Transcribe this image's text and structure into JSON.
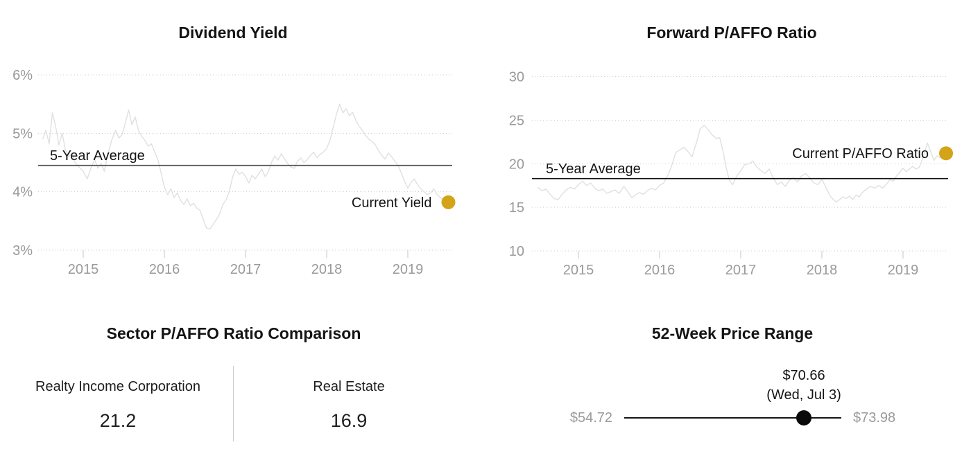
{
  "colors": {
    "accent_gold": "#d3a418",
    "series_gray": "#e0e0e0",
    "grid_gray": "#cccccc",
    "axis_text_gray": "#9a9a9a",
    "annotation_black": "#141414",
    "avg_line_chart1": "#4d4d4d",
    "avg_line_chart2": "#111111"
  },
  "chart_data": [
    {
      "type": "line",
      "title": "Dividend Yield",
      "xlabel": "",
      "ylabel": "",
      "ylim": [
        3,
        6
      ],
      "xlim": [
        2014.44,
        2019.57
      ],
      "grid": "dotted-horizontal",
      "y_ticks": [
        {
          "v": 6,
          "label": "6%"
        },
        {
          "v": 5,
          "label": "5%"
        },
        {
          "v": 4,
          "label": "4%"
        },
        {
          "v": 3,
          "label": "3%"
        }
      ],
      "x_ticks": [
        {
          "v": 2015,
          "label": "2015"
        },
        {
          "v": 2016,
          "label": "2016"
        },
        {
          "v": 2017,
          "label": "2017"
        },
        {
          "v": 2018,
          "label": "2018"
        },
        {
          "v": 2019,
          "label": "2019"
        }
      ],
      "average_line": {
        "value": 4.45,
        "label": "5-Year Average"
      },
      "current_marker": {
        "x": 2019.5,
        "value": 3.82,
        "label": "Current Yield"
      },
      "series": [
        {
          "name": "Dividend Yield",
          "points": [
            [
              2014.5,
              4.9
            ],
            [
              2014.54,
              5.05
            ],
            [
              2014.58,
              4.82
            ],
            [
              2014.62,
              5.35
            ],
            [
              2014.66,
              5.12
            ],
            [
              2014.7,
              4.8
            ],
            [
              2014.74,
              5.0
            ],
            [
              2014.78,
              4.72
            ],
            [
              2014.82,
              4.6
            ],
            [
              2014.86,
              4.65
            ],
            [
              2014.9,
              4.5
            ],
            [
              2014.95,
              4.42
            ],
            [
              2015.0,
              4.35
            ],
            [
              2015.05,
              4.22
            ],
            [
              2015.1,
              4.42
            ],
            [
              2015.14,
              4.55
            ],
            [
              2015.18,
              4.4
            ],
            [
              2015.22,
              4.48
            ],
            [
              2015.26,
              4.35
            ],
            [
              2015.3,
              4.62
            ],
            [
              2015.35,
              4.88
            ],
            [
              2015.4,
              5.05
            ],
            [
              2015.44,
              4.92
            ],
            [
              2015.48,
              4.98
            ],
            [
              2015.52,
              5.18
            ],
            [
              2015.56,
              5.4
            ],
            [
              2015.6,
              5.15
            ],
            [
              2015.64,
              5.28
            ],
            [
              2015.68,
              5.05
            ],
            [
              2015.72,
              4.95
            ],
            [
              2015.76,
              4.88
            ],
            [
              2015.8,
              4.78
            ],
            [
              2015.84,
              4.82
            ],
            [
              2015.88,
              4.68
            ],
            [
              2015.92,
              4.55
            ],
            [
              2015.96,
              4.32
            ],
            [
              2016.0,
              4.08
            ],
            [
              2016.04,
              3.95
            ],
            [
              2016.08,
              4.05
            ],
            [
              2016.12,
              3.9
            ],
            [
              2016.16,
              3.98
            ],
            [
              2016.2,
              3.85
            ],
            [
              2016.24,
              3.78
            ],
            [
              2016.28,
              3.88
            ],
            [
              2016.32,
              3.76
            ],
            [
              2016.36,
              3.8
            ],
            [
              2016.4,
              3.72
            ],
            [
              2016.44,
              3.68
            ],
            [
              2016.48,
              3.52
            ],
            [
              2016.52,
              3.38
            ],
            [
              2016.56,
              3.36
            ],
            [
              2016.6,
              3.44
            ],
            [
              2016.64,
              3.52
            ],
            [
              2016.68,
              3.62
            ],
            [
              2016.72,
              3.78
            ],
            [
              2016.76,
              3.86
            ],
            [
              2016.8,
              4.0
            ],
            [
              2016.84,
              4.25
            ],
            [
              2016.88,
              4.39
            ],
            [
              2016.92,
              4.3
            ],
            [
              2016.96,
              4.33
            ],
            [
              2017.0,
              4.26
            ],
            [
              2017.04,
              4.15
            ],
            [
              2017.08,
              4.28
            ],
            [
              2017.12,
              4.22
            ],
            [
              2017.16,
              4.3
            ],
            [
              2017.2,
              4.39
            ],
            [
              2017.24,
              4.26
            ],
            [
              2017.28,
              4.34
            ],
            [
              2017.32,
              4.5
            ],
            [
              2017.36,
              4.61
            ],
            [
              2017.4,
              4.54
            ],
            [
              2017.44,
              4.65
            ],
            [
              2017.48,
              4.56
            ],
            [
              2017.52,
              4.48
            ],
            [
              2017.56,
              4.42
            ],
            [
              2017.6,
              4.4
            ],
            [
              2017.64,
              4.52
            ],
            [
              2017.68,
              4.58
            ],
            [
              2017.72,
              4.5
            ],
            [
              2017.76,
              4.55
            ],
            [
              2017.8,
              4.62
            ],
            [
              2017.84,
              4.68
            ],
            [
              2017.88,
              4.58
            ],
            [
              2017.92,
              4.64
            ],
            [
              2017.96,
              4.68
            ],
            [
              2018.0,
              4.74
            ],
            [
              2018.04,
              4.88
            ],
            [
              2018.08,
              5.1
            ],
            [
              2018.12,
              5.32
            ],
            [
              2018.16,
              5.5
            ],
            [
              2018.2,
              5.35
            ],
            [
              2018.24,
              5.42
            ],
            [
              2018.28,
              5.3
            ],
            [
              2018.32,
              5.36
            ],
            [
              2018.36,
              5.22
            ],
            [
              2018.4,
              5.12
            ],
            [
              2018.44,
              5.05
            ],
            [
              2018.48,
              4.96
            ],
            [
              2018.52,
              4.9
            ],
            [
              2018.56,
              4.86
            ],
            [
              2018.6,
              4.8
            ],
            [
              2018.64,
              4.7
            ],
            [
              2018.68,
              4.62
            ],
            [
              2018.72,
              4.56
            ],
            [
              2018.76,
              4.66
            ],
            [
              2018.8,
              4.6
            ],
            [
              2018.84,
              4.52
            ],
            [
              2018.88,
              4.45
            ],
            [
              2018.92,
              4.32
            ],
            [
              2018.96,
              4.18
            ],
            [
              2019.0,
              4.06
            ],
            [
              2019.04,
              4.16
            ],
            [
              2019.08,
              4.22
            ],
            [
              2019.12,
              4.12
            ],
            [
              2019.16,
              4.05
            ],
            [
              2019.2,
              4.0
            ],
            [
              2019.24,
              3.95
            ],
            [
              2019.28,
              3.98
            ],
            [
              2019.32,
              4.05
            ],
            [
              2019.36,
              3.95
            ],
            [
              2019.4,
              3.9
            ],
            [
              2019.44,
              3.86
            ]
          ]
        }
      ]
    },
    {
      "type": "line",
      "title": "Forward P/AFFO Ratio",
      "xlabel": "",
      "ylabel": "",
      "ylim": [
        10,
        30
      ],
      "xlim": [
        2014.43,
        2019.56
      ],
      "grid": "dotted-horizontal",
      "y_ticks": [
        {
          "v": 30,
          "label": "30"
        },
        {
          "v": 25,
          "label": "25"
        },
        {
          "v": 20,
          "label": "20"
        },
        {
          "v": 15,
          "label": "15"
        },
        {
          "v": 10,
          "label": "10"
        }
      ],
      "x_ticks": [
        {
          "v": 2015,
          "label": "2015"
        },
        {
          "v": 2016,
          "label": "2016"
        },
        {
          "v": 2017,
          "label": "2017"
        },
        {
          "v": 2018,
          "label": "2018"
        },
        {
          "v": 2019,
          "label": "2019"
        }
      ],
      "average_line": {
        "value": 18.3,
        "label": "5-Year Average"
      },
      "current_marker": {
        "x": 2019.53,
        "value": 21.2,
        "label": "Current P/AFFO Ratio"
      },
      "series": [
        {
          "name": "Forward P/AFFO Ratio",
          "points": [
            [
              2014.5,
              17.3
            ],
            [
              2014.55,
              16.9
            ],
            [
              2014.6,
              17.1
            ],
            [
              2014.65,
              16.5
            ],
            [
              2014.7,
              16.0
            ],
            [
              2014.75,
              15.9
            ],
            [
              2014.8,
              16.5
            ],
            [
              2014.85,
              17.0
            ],
            [
              2014.9,
              17.3
            ],
            [
              2014.95,
              17.1
            ],
            [
              2015.0,
              17.6
            ],
            [
              2015.05,
              18.0
            ],
            [
              2015.1,
              17.5
            ],
            [
              2015.15,
              17.8
            ],
            [
              2015.2,
              17.2
            ],
            [
              2015.25,
              16.9
            ],
            [
              2015.3,
              17.1
            ],
            [
              2015.35,
              16.6
            ],
            [
              2015.4,
              16.8
            ],
            [
              2015.45,
              17.0
            ],
            [
              2015.5,
              16.6
            ],
            [
              2015.56,
              17.4
            ],
            [
              2015.6,
              16.9
            ],
            [
              2015.66,
              16.1
            ],
            [
              2015.7,
              16.4
            ],
            [
              2015.75,
              16.7
            ],
            [
              2015.8,
              16.5
            ],
            [
              2015.85,
              16.9
            ],
            [
              2015.9,
              17.2
            ],
            [
              2015.95,
              17.0
            ],
            [
              2016.0,
              17.5
            ],
            [
              2016.05,
              17.8
            ],
            [
              2016.1,
              18.6
            ],
            [
              2016.15,
              19.8
            ],
            [
              2016.2,
              21.3
            ],
            [
              2016.25,
              21.6
            ],
            [
              2016.3,
              21.9
            ],
            [
              2016.35,
              21.4
            ],
            [
              2016.4,
              20.8
            ],
            [
              2016.45,
              22.3
            ],
            [
              2016.5,
              24.0
            ],
            [
              2016.55,
              24.4
            ],
            [
              2016.6,
              23.9
            ],
            [
              2016.65,
              23.3
            ],
            [
              2016.7,
              22.9
            ],
            [
              2016.74,
              23.0
            ],
            [
              2016.78,
              21.5
            ],
            [
              2016.82,
              19.6
            ],
            [
              2016.86,
              18.1
            ],
            [
              2016.9,
              17.6
            ],
            [
              2016.95,
              18.6
            ],
            [
              2017.0,
              19.2
            ],
            [
              2017.05,
              19.9
            ],
            [
              2017.1,
              20.0
            ],
            [
              2017.15,
              20.3
            ],
            [
              2017.2,
              19.6
            ],
            [
              2017.25,
              19.2
            ],
            [
              2017.3,
              18.9
            ],
            [
              2017.35,
              19.4
            ],
            [
              2017.4,
              18.4
            ],
            [
              2017.45,
              17.6
            ],
            [
              2017.5,
              17.9
            ],
            [
              2017.55,
              17.4
            ],
            [
              2017.6,
              18.1
            ],
            [
              2017.65,
              18.4
            ],
            [
              2017.7,
              17.9
            ],
            [
              2017.75,
              18.6
            ],
            [
              2017.8,
              18.9
            ],
            [
              2017.85,
              18.4
            ],
            [
              2017.9,
              17.8
            ],
            [
              2017.95,
              17.6
            ],
            [
              2018.0,
              18.2
            ],
            [
              2018.05,
              17.3
            ],
            [
              2018.1,
              16.3
            ],
            [
              2018.14,
              15.9
            ],
            [
              2018.18,
              15.6
            ],
            [
              2018.22,
              15.9
            ],
            [
              2018.26,
              16.2
            ],
            [
              2018.3,
              16.0
            ],
            [
              2018.34,
              16.3
            ],
            [
              2018.38,
              15.9
            ],
            [
              2018.42,
              16.4
            ],
            [
              2018.46,
              16.2
            ],
            [
              2018.5,
              16.7
            ],
            [
              2018.55,
              17.1
            ],
            [
              2018.6,
              17.4
            ],
            [
              2018.65,
              17.2
            ],
            [
              2018.7,
              17.5
            ],
            [
              2018.75,
              17.2
            ],
            [
              2018.8,
              17.7
            ],
            [
              2018.84,
              18.2
            ],
            [
              2018.88,
              18.0
            ],
            [
              2018.92,
              18.6
            ],
            [
              2018.96,
              19.0
            ],
            [
              2019.0,
              19.5
            ],
            [
              2019.04,
              19.1
            ],
            [
              2019.08,
              19.4
            ],
            [
              2019.12,
              19.7
            ],
            [
              2019.16,
              19.4
            ],
            [
              2019.2,
              19.6
            ],
            [
              2019.25,
              20.8
            ],
            [
              2019.3,
              22.4
            ],
            [
              2019.34,
              21.4
            ],
            [
              2019.38,
              20.4
            ],
            [
              2019.42,
              20.9
            ],
            [
              2019.46,
              20.7
            ]
          ]
        }
      ]
    },
    {
      "type": "table",
      "title": "Sector P/AFFO Ratio Comparison",
      "columns": [
        {
          "label": "Realty Income Corporation",
          "value": "21.2"
        },
        {
          "label": "Real Estate",
          "value": "16.9"
        }
      ]
    },
    {
      "type": "range",
      "title": "52-Week Price Range",
      "min": 54.72,
      "max": 73.98,
      "current": 70.66,
      "min_label": "$54.72",
      "max_label": "$73.98",
      "current_label": "$70.66",
      "current_date_label": "(Wed, Jul 3)"
    }
  ]
}
